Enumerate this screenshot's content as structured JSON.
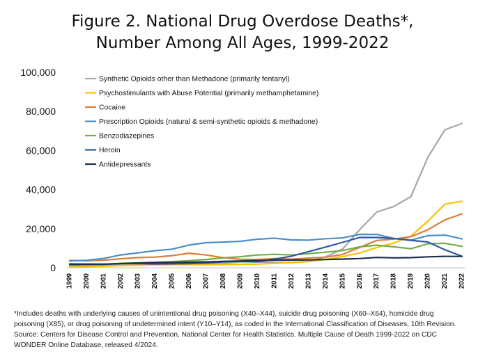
{
  "title_line1": "Figure 2. National Drug Overdose Deaths*,",
  "title_line2": "Number Among All Ages, 1999-2022",
  "footnote": [
    "*Includes deaths with underlying causes of unintentional drug poisoning (X40–X44), suicide drug poisoning (X60–X64), homicide drug",
    "poisoning (X85), or drug poisoning of undetermined intent (Y10–Y14), as coded in the International Classification of Diseases, 10th Revision.",
    "Source: Centers for Disease Control and Prevention, National Center for Health Statistics. Multiple Cause of Death 1999-2022 on CDC",
    "WONDER Online Database, released 4/2024."
  ],
  "chart_data": {
    "type": "line",
    "x": [
      "1999",
      "2000",
      "2001",
      "2002",
      "2003",
      "2004",
      "2005",
      "2006",
      "2007",
      "2008",
      "2009",
      "2010",
      "2011",
      "2012",
      "2013",
      "2014",
      "2015",
      "2016",
      "2017",
      "2018",
      "2019",
      "2020",
      "2021",
      "2022"
    ],
    "ylim": [
      0,
      100000
    ],
    "yticks": [
      0,
      20000,
      40000,
      60000,
      80000,
      100000
    ],
    "ytick_labels": [
      "0",
      "20,000",
      "40,000",
      "60,000",
      "80,000",
      "100,000"
    ],
    "grid": false,
    "legend_position": "top-left",
    "series": [
      {
        "name": "Synthetic Opioids other than Methadone (primarily fentanyl)",
        "color": "#a6a6a6",
        "values": [
          730,
          782,
          957,
          1295,
          1400,
          1664,
          1742,
          2707,
          2213,
          2306,
          2946,
          3007,
          2666,
          2628,
          3105,
          5544,
          9580,
          19413,
          28466,
          31335,
          36359,
          56516,
          70601,
          73838
        ]
      },
      {
        "name": "Psychostimulants with Abuse Potential (primarily methamphetamine)",
        "color": "#ffc000",
        "values": [
          547,
          578,
          742,
          1130,
          1330,
          1486,
          1525,
          1580,
          1566,
          1589,
          1760,
          1854,
          2263,
          2635,
          3181,
          4298,
          5716,
          7542,
          10333,
          12676,
          16167,
          23837,
          32537,
          34022
        ]
      },
      {
        "name": "Cocaine",
        "color": "#e07b39",
        "values": [
          3822,
          3544,
          3833,
          4599,
          5199,
          5443,
          6208,
          7448,
          6512,
          5129,
          4350,
          4183,
          4681,
          4404,
          4944,
          5415,
          6784,
          10375,
          13942,
          14666,
          15883,
          19447,
          24486,
          27569
        ]
      },
      {
        "name": "Prescription Opioids (natural & semi-synthetic opioids & methadone)",
        "color": "#4a90c8",
        "values": [
          3442,
          3785,
          4770,
          6541,
          7631,
          8715,
          9500,
          11589,
          12796,
          13149,
          13523,
          14583,
          15140,
          14240,
          14145,
          14838,
          15281,
          17087,
          17029,
          14975,
          14139,
          16416,
          16706,
          14716
        ]
      },
      {
        "name": "Benzodiazepines",
        "color": "#70ad47",
        "values": [
          1135,
          1298,
          1594,
          2279,
          2577,
          2843,
          3161,
          3624,
          4251,
          5008,
          5605,
          6497,
          6872,
          6524,
          7180,
          7945,
          8791,
          10684,
          11537,
          10724,
          9711,
          12290,
          12499,
          10964
        ]
      },
      {
        "name": "Heroin",
        "color": "#2e58a8",
        "values": [
          1960,
          1842,
          1779,
          2089,
          2080,
          1878,
          2009,
          2088,
          2399,
          3041,
          3278,
          3036,
          4397,
          5925,
          8257,
          10574,
          12989,
          15469,
          15482,
          14996,
          14019,
          13165,
          9173,
          5871
        ]
      },
      {
        "name": "Antidepressants",
        "color": "#1f2d4f",
        "values": [
          1749,
          1810,
          1835,
          2140,
          2360,
          2509,
          2677,
          2856,
          3000,
          3224,
          3500,
          3700,
          3880,
          3900,
          4000,
          4200,
          4400,
          4700,
          5269,
          5064,
          5148,
          5597,
          5800,
          5811
        ]
      }
    ]
  }
}
